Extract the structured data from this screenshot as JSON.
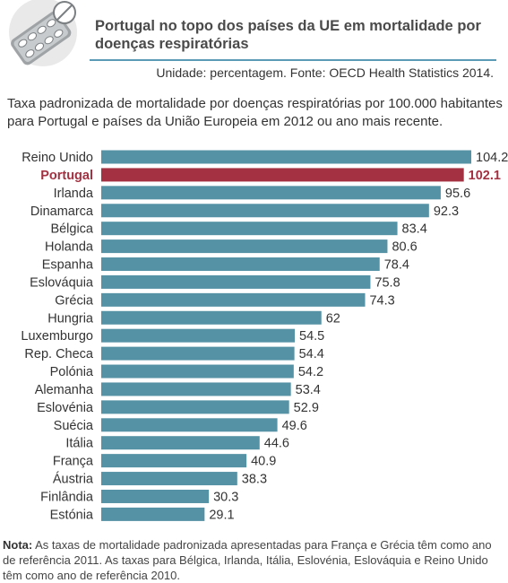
{
  "header": {
    "title": "Portugal no topo dos países da UE em mortalidade por doenças respiratórias",
    "unit_source": "Unidade: percentagem. Fonte: OECD Health Statistics 2014.",
    "subtitle": "Taxa padronizada de mortalidade por doenças respiratórias por 100.000 habitantes para Portugal e países da União Europeia em 2012 ou ano mais recente."
  },
  "colors": {
    "bar": "#5592a5",
    "highlight": "#a33141",
    "accent_rule": "#5b9bb5"
  },
  "icon": "pill-blister-icon",
  "chart_data": {
    "type": "bar",
    "orientation": "horizontal",
    "categories": [
      "Reino Unido",
      "Portugal",
      "Irlanda",
      "Dinamarca",
      "Bélgica",
      "Holanda",
      "Espanha",
      "Eslováquia",
      "Grécia",
      "Hungria",
      "Luxemburgo",
      "Rep. Checa",
      "Polónia",
      "Alemanha",
      "Eslovénia",
      "Suécia",
      "Itália",
      "França",
      "Áustria",
      "Finlândia",
      "Estónia"
    ],
    "values": [
      104.2,
      102.1,
      95.6,
      92.3,
      83.4,
      80.6,
      78.4,
      75.8,
      74.3,
      62,
      54.5,
      54.4,
      54.2,
      53.4,
      52.9,
      49.6,
      44.6,
      40.9,
      38.3,
      30.3,
      29.1
    ],
    "value_labels": [
      "104.2",
      "102.1",
      "95.6",
      "92.3",
      "83.4",
      "80.6",
      "78.4",
      "75.8",
      "74.3",
      "62",
      "54.5",
      "54.4",
      "54.2",
      "53.4",
      "52.9",
      "49.6",
      "44.6",
      "40.9",
      "38.3",
      "30.3",
      "29.1"
    ],
    "highlight": "Portugal",
    "xlim": [
      0,
      104.2
    ],
    "grid": false,
    "legend": "none"
  },
  "note": {
    "label": "Nota:",
    "text": " As taxas de mortalidade padronizada apresentadas para França e Grécia têm como ano de referência 2011. As taxas para Bélgica, Irlanda, Itália, Eslovénia, Eslováquia e Reino Unido têm como ano de referência 2010."
  }
}
